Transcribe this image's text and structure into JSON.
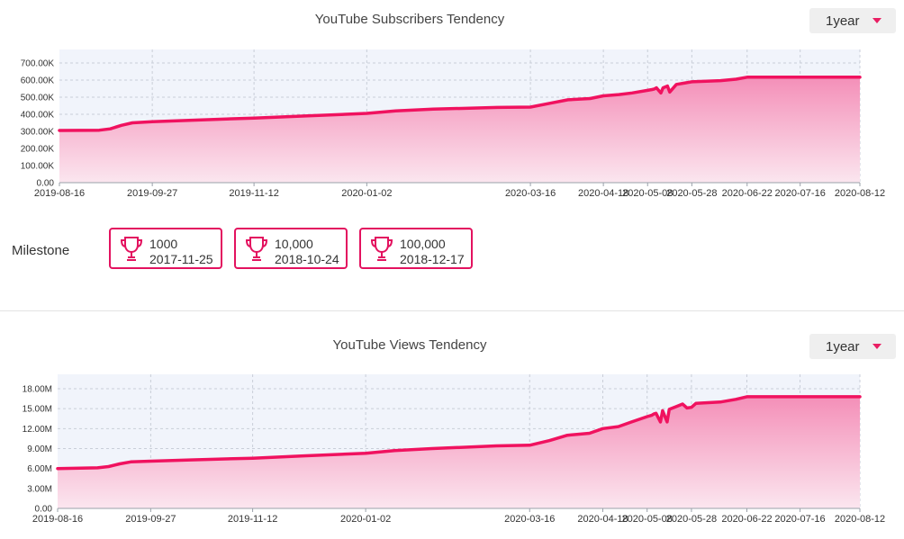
{
  "subscribers": {
    "title": "YouTube Subscribers Tendency",
    "range_label": "1year"
  },
  "views": {
    "title": "YouTube Views Tendency",
    "range_label": "1year"
  },
  "milestone": {
    "label": "Milestone",
    "items": [
      {
        "value": "1000",
        "date": "2017-11-25"
      },
      {
        "value": "10,000",
        "date": "2018-10-24"
      },
      {
        "value": "100,000",
        "date": "2018-12-17"
      }
    ]
  },
  "colors": {
    "line": "#f0125f",
    "fill_top": "#f48fb8",
    "fill_bottom": "#fbe6ef",
    "milestone_border": "#e3125f"
  },
  "icons": {
    "milestone": "trophy-icon",
    "dropdown": "caret-down-icon"
  },
  "chart_data": [
    {
      "type": "area",
      "title": "YouTube Subscribers Tendency",
      "xlabel": "",
      "ylabel": "",
      "grid": true,
      "x_range": [
        "2019-08-16",
        "2020-08-12"
      ],
      "ylim": [
        0,
        700000
      ],
      "y_ticks": [
        0,
        100000,
        200000,
        300000,
        400000,
        500000,
        600000,
        700000
      ],
      "y_tick_labels": [
        "0.00",
        "100.00K",
        "200.00K",
        "300.00K",
        "400.00K",
        "500.00K",
        "600.00K",
        "700.00K"
      ],
      "x_ticks": [
        "2019-08-16",
        "2019-09-27",
        "2019-11-12",
        "2020-01-02",
        "2020-03-16",
        "2020-04-18",
        "2020-05-08",
        "2020-05-28",
        "2020-06-22",
        "2020-07-16",
        "2020-08-12"
      ],
      "series": [
        {
          "x": [
            "2019-08-16",
            "2019-09-03",
            "2019-09-08",
            "2019-09-13",
            "2019-09-18",
            "2019-09-27",
            "2019-10-15",
            "2019-11-12",
            "2019-12-05",
            "2020-01-02",
            "2020-01-15",
            "2020-02-01",
            "2020-03-01",
            "2020-03-16",
            "2020-03-25",
            "2020-04-02",
            "2020-04-12",
            "2020-04-18",
            "2020-04-25",
            "2020-05-01",
            "2020-05-08",
            "2020-05-10",
            "2020-05-11",
            "2020-05-12",
            "2020-05-14",
            "2020-05-15",
            "2020-05-17",
            "2020-05-18",
            "2020-05-21",
            "2020-05-28",
            "2020-06-10",
            "2020-06-17",
            "2020-06-22",
            "2020-07-16",
            "2020-08-12"
          ],
          "values": [
            305000,
            307000,
            315000,
            335000,
            350000,
            357000,
            365000,
            378000,
            390000,
            405000,
            420000,
            430000,
            440000,
            442000,
            465000,
            485000,
            492000,
            508000,
            515000,
            525000,
            540000,
            545000,
            548000,
            555000,
            525000,
            555000,
            565000,
            530000,
            575000,
            590000,
            597000,
            605000,
            617000,
            617000,
            617000
          ]
        }
      ]
    },
    {
      "type": "area",
      "title": "YouTube Views Tendency",
      "xlabel": "",
      "ylabel": "",
      "grid": true,
      "x_range": [
        "2019-08-16",
        "2020-08-12"
      ],
      "ylim": [
        0,
        18000000
      ],
      "y_ticks": [
        0,
        3000000,
        6000000,
        9000000,
        12000000,
        15000000,
        18000000
      ],
      "y_tick_labels": [
        "0.00",
        "3.00M",
        "6.00M",
        "9.00M",
        "12.00M",
        "15.00M",
        "18.00M"
      ],
      "x_ticks": [
        "2019-08-16",
        "2019-09-27",
        "2019-11-12",
        "2020-01-02",
        "2020-03-16",
        "2020-04-18",
        "2020-05-08",
        "2020-05-28",
        "2020-06-22",
        "2020-07-16",
        "2020-08-12"
      ],
      "series": [
        {
          "x": [
            "2019-08-16",
            "2019-09-03",
            "2019-09-08",
            "2019-09-13",
            "2019-09-18",
            "2019-09-27",
            "2019-10-15",
            "2019-11-12",
            "2019-12-05",
            "2020-01-02",
            "2020-01-15",
            "2020-02-01",
            "2020-03-01",
            "2020-03-16",
            "2020-03-25",
            "2020-04-02",
            "2020-04-12",
            "2020-04-18",
            "2020-04-25",
            "2020-05-01",
            "2020-05-08",
            "2020-05-10",
            "2020-05-11",
            "2020-05-12",
            "2020-05-14",
            "2020-05-15",
            "2020-05-17",
            "2020-05-18",
            "2020-05-21",
            "2020-05-24",
            "2020-05-26",
            "2020-05-28",
            "2020-05-30",
            "2020-06-10",
            "2020-06-17",
            "2020-06-22",
            "2020-07-16",
            "2020-08-12"
          ],
          "values": [
            6000000,
            6100000,
            6300000,
            6700000,
            7000000,
            7100000,
            7300000,
            7550000,
            7900000,
            8300000,
            8700000,
            9000000,
            9400000,
            9500000,
            10200000,
            11000000,
            11300000,
            12000000,
            12300000,
            13000000,
            13800000,
            14000000,
            14200000,
            14300000,
            13000000,
            14700000,
            13000000,
            14900000,
            15300000,
            15700000,
            15100000,
            15200000,
            15800000,
            16000000,
            16400000,
            16800000,
            16800000,
            16800000
          ]
        }
      ]
    }
  ]
}
